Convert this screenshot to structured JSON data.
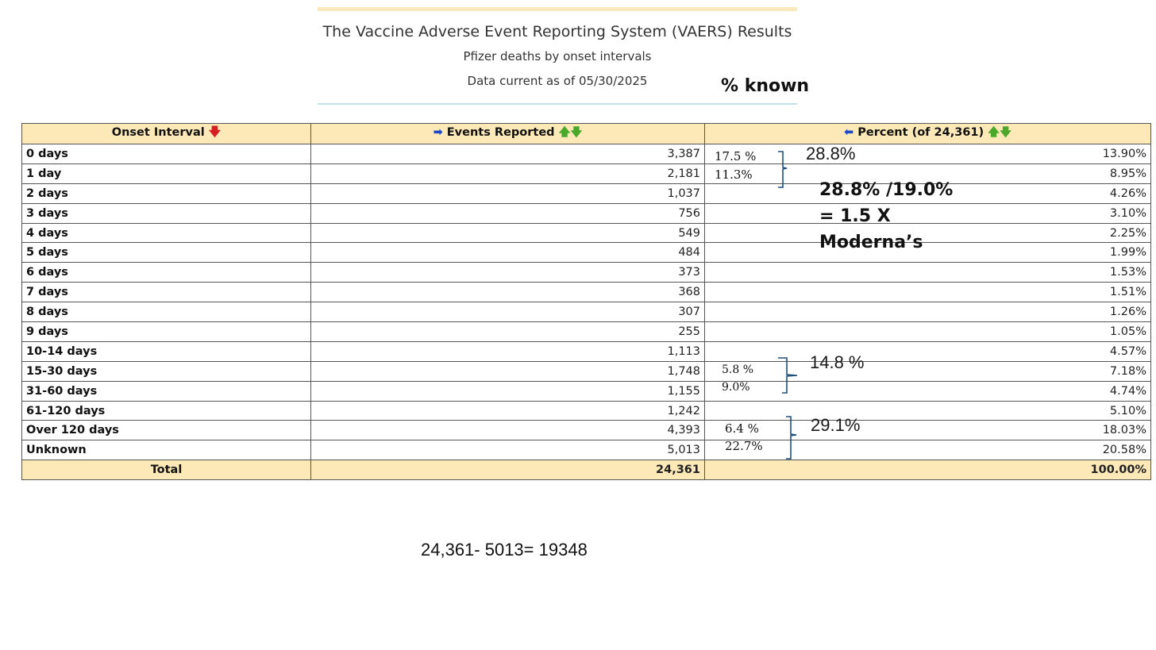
{
  "header": {
    "title": "The Vaccine Adverse Event Reporting System (VAERS) Results",
    "subtitle": "Pfizer deaths by onset intervals",
    "date": "Data current as of 05/30/2025"
  },
  "known_label": "% known",
  "table": {
    "columns": {
      "interval": "Onset Interval",
      "events": "Events Reported",
      "percent": "Percent (of 24,361)"
    },
    "rows": [
      {
        "interval": "0 days",
        "events": "3,387",
        "percent": "13.90%"
      },
      {
        "interval": "1 day",
        "events": "2,181",
        "percent": "8.95%"
      },
      {
        "interval": "2 days",
        "events": "1,037",
        "percent": "4.26%"
      },
      {
        "interval": "3 days",
        "events": "756",
        "percent": "3.10%"
      },
      {
        "interval": "4 days",
        "events": "549",
        "percent": "2.25%"
      },
      {
        "interval": "5 days",
        "events": "484",
        "percent": "1.99%"
      },
      {
        "interval": "6 days",
        "events": "373",
        "percent": "1.53%"
      },
      {
        "interval": "7 days",
        "events": "368",
        "percent": "1.51%"
      },
      {
        "interval": "8 days",
        "events": "307",
        "percent": "1.26%"
      },
      {
        "interval": "9 days",
        "events": "255",
        "percent": "1.05%"
      },
      {
        "interval": "10-14 days",
        "events": "1,113",
        "percent": "4.57%"
      },
      {
        "interval": "15-30 days",
        "events": "1,748",
        "percent": "7.18%"
      },
      {
        "interval": "31-60 days",
        "events": "1,155",
        "percent": "4.74%"
      },
      {
        "interval": "61-120 days",
        "events": "1,242",
        "percent": "5.10%"
      },
      {
        "interval": "Over 120 days",
        "events": "4,393",
        "percent": "18.03%"
      },
      {
        "interval": "Unknown",
        "events": "5,013",
        "percent": "20.58%"
      }
    ],
    "total": {
      "label": "Total",
      "events": "24,361",
      "percent": "100.00%"
    }
  },
  "annotations": {
    "a0": "17.5 %",
    "a1": "11.3%",
    "g1": "28.8%",
    "ratio_line1": "28.8% /19.0%",
    "ratio_line2": "= 1.5 X",
    "ratio_line3": "Moderna’s",
    "a10": "5.8 %",
    "a11": "9.0%",
    "g2": "14.8 %",
    "a13": "6.4 %",
    "a14": "22.7%",
    "g3": "29.1%"
  },
  "calculation": "24,361- 5013= 19348",
  "colors": {
    "header_bg": "#fde9b8",
    "header_link": "#1a4f9c",
    "sort_down_red": "#d71f1f",
    "sort_green": "#4aa82a",
    "bracket": "#1f4e79"
  }
}
